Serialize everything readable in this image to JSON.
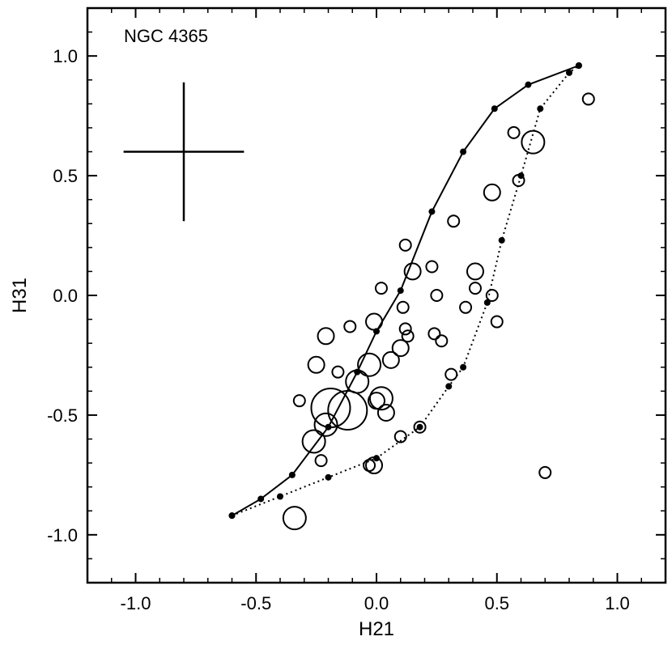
{
  "chart_data": {
    "type": "scatter",
    "annotation": "NGC 4365",
    "xlabel": "H21",
    "ylabel": "H31",
    "xlim": [
      -1.2,
      1.2
    ],
    "ylim": [
      -1.2,
      1.2
    ],
    "xticks": [
      -1.0,
      -0.5,
      0.0,
      0.5,
      1.0
    ],
    "yticks": [
      -1.0,
      -0.5,
      0.0,
      0.5,
      1.0
    ],
    "xtick_labels": [
      "-1.0",
      "-0.5",
      "0.0",
      "0.5",
      "1.0"
    ],
    "ytick_labels": [
      "-1.0",
      "-0.5",
      "0.0",
      "0.5",
      "1.0"
    ],
    "grid": false,
    "error_bar": {
      "x": -0.8,
      "y": 0.6,
      "xerr": 0.25,
      "yerr": 0.29
    },
    "points": [
      {
        "x": -0.34,
        "y": -0.93,
        "size": "large"
      },
      {
        "x": -0.23,
        "y": -0.69,
        "size": "small"
      },
      {
        "x": -0.26,
        "y": -0.61,
        "size": "large"
      },
      {
        "x": -0.21,
        "y": -0.54,
        "size": "large"
      },
      {
        "x": -0.19,
        "y": -0.47,
        "size": "xlarge"
      },
      {
        "x": -0.12,
        "y": -0.48,
        "size": "xlarge"
      },
      {
        "x": -0.32,
        "y": -0.44,
        "size": "small"
      },
      {
        "x": -0.25,
        "y": -0.29,
        "size": "medium"
      },
      {
        "x": -0.21,
        "y": -0.17,
        "size": "medium"
      },
      {
        "x": -0.16,
        "y": -0.32,
        "size": "small"
      },
      {
        "x": -0.11,
        "y": -0.13,
        "size": "small"
      },
      {
        "x": -0.08,
        "y": -0.36,
        "size": "large"
      },
      {
        "x": -0.03,
        "y": -0.29,
        "size": "large"
      },
      {
        "x": -0.01,
        "y": -0.11,
        "size": "medium"
      },
      {
        "x": 0.02,
        "y": -0.43,
        "size": "large"
      },
      {
        "x": 0.04,
        "y": -0.49,
        "size": "medium"
      },
      {
        "x": 0.0,
        "y": -0.44,
        "size": "medium"
      },
      {
        "x": 0.06,
        "y": -0.27,
        "size": "medium"
      },
      {
        "x": 0.1,
        "y": -0.22,
        "size": "medium"
      },
      {
        "x": 0.12,
        "y": -0.14,
        "size": "small"
      },
      {
        "x": 0.13,
        "y": -0.17,
        "size": "small"
      },
      {
        "x": 0.11,
        "y": -0.05,
        "size": "small"
      },
      {
        "x": 0.02,
        "y": 0.03,
        "size": "small"
      },
      {
        "x": 0.15,
        "y": 0.1,
        "size": "medium"
      },
      {
        "x": 0.12,
        "y": 0.21,
        "size": "small"
      },
      {
        "x": 0.23,
        "y": 0.12,
        "size": "small"
      },
      {
        "x": 0.25,
        "y": 0.0,
        "size": "small"
      },
      {
        "x": 0.24,
        "y": -0.16,
        "size": "small"
      },
      {
        "x": 0.27,
        "y": -0.19,
        "size": "small"
      },
      {
        "x": 0.32,
        "y": 0.31,
        "size": "small"
      },
      {
        "x": 0.37,
        "y": -0.05,
        "size": "small"
      },
      {
        "x": 0.41,
        "y": 0.1,
        "size": "medium"
      },
      {
        "x": 0.41,
        "y": 0.03,
        "size": "small"
      },
      {
        "x": 0.48,
        "y": 0.0,
        "size": "small"
      },
      {
        "x": 0.5,
        "y": -0.11,
        "size": "small"
      },
      {
        "x": 0.48,
        "y": 0.43,
        "size": "medium"
      },
      {
        "x": 0.57,
        "y": 0.68,
        "size": "small"
      },
      {
        "x": 0.59,
        "y": 0.48,
        "size": "small"
      },
      {
        "x": 0.65,
        "y": 0.64,
        "size": "large"
      },
      {
        "x": 0.88,
        "y": 0.82,
        "size": "small"
      },
      {
        "x": 0.7,
        "y": -0.74,
        "size": "small"
      },
      {
        "x": 0.31,
        "y": -0.33,
        "size": "small"
      },
      {
        "x": 0.18,
        "y": -0.55,
        "size": "small"
      },
      {
        "x": 0.1,
        "y": -0.59,
        "size": "small"
      },
      {
        "x": -0.03,
        "y": -0.71,
        "size": "small"
      },
      {
        "x": -0.01,
        "y": -0.71,
        "size": "medium"
      }
    ],
    "tracks": [
      {
        "style": "solid",
        "x": [
          -0.6,
          -0.48,
          -0.35,
          -0.2,
          -0.08,
          0.0,
          0.1,
          0.23,
          0.36,
          0.49,
          0.63,
          0.84
        ],
        "y": [
          -0.92,
          -0.85,
          -0.75,
          -0.55,
          -0.32,
          -0.15,
          0.02,
          0.35,
          0.6,
          0.78,
          0.88,
          0.96
        ]
      },
      {
        "style": "dotted",
        "x": [
          -0.6,
          -0.4,
          -0.2,
          0.0,
          0.18,
          0.3,
          0.36,
          0.46,
          0.52,
          0.6,
          0.68,
          0.8,
          0.84
        ],
        "y": [
          -0.92,
          -0.84,
          -0.76,
          -0.68,
          -0.55,
          -0.38,
          -0.3,
          -0.03,
          0.23,
          0.5,
          0.78,
          0.93,
          0.96
        ]
      }
    ]
  }
}
